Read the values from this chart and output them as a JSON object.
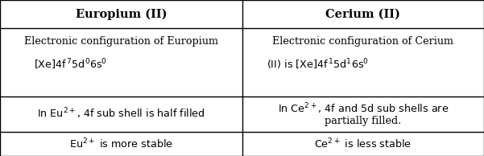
{
  "figsize": [
    6.01,
    1.94
  ],
  "dpi": 100,
  "bg_color": "#ffffff",
  "headers": [
    "Europium (II)",
    "Cerium (II)"
  ],
  "header_fontsize": 10.5,
  "cell_fontsize": 9.2,
  "row_tops": [
    1.0,
    0.82,
    0.38,
    0.155,
    0.0
  ],
  "col_mid": [
    0.25,
    0.75
  ]
}
